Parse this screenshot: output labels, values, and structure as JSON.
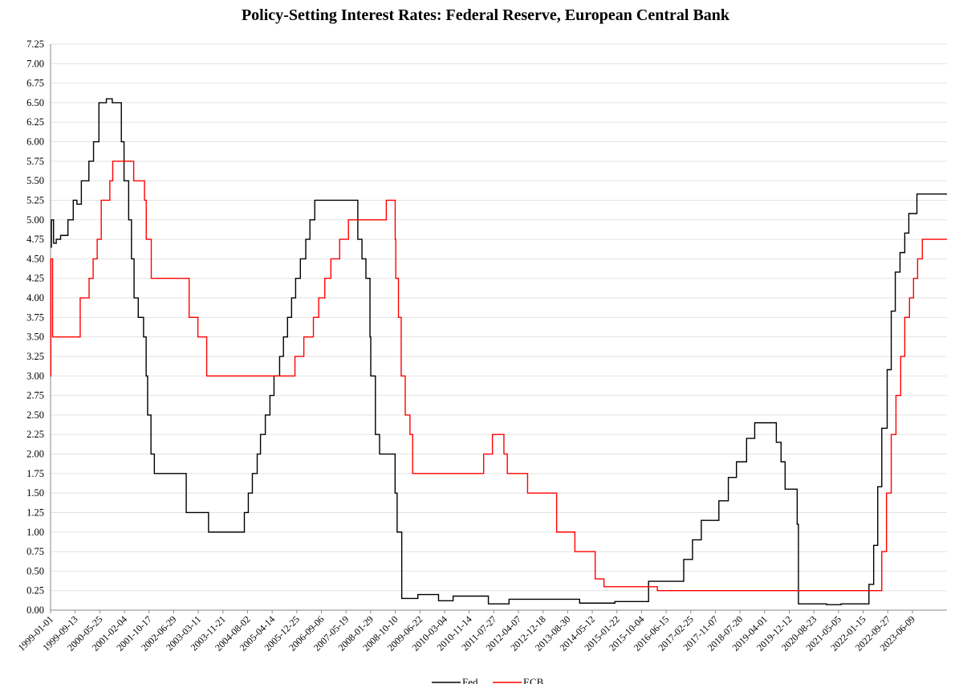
{
  "chart_data": {
    "type": "line",
    "title": "Policy-Setting Interest Rates: Federal Reserve, European Central Bank",
    "xlabel": "",
    "ylabel": "",
    "ylim": [
      0,
      7.25
    ],
    "xlim": [
      "1999-01-01",
      "2024-06-01"
    ],
    "yticks": [
      "0.00",
      "0.25",
      "0.50",
      "0.75",
      "1.00",
      "1.25",
      "1.50",
      "1.75",
      "2.00",
      "2.25",
      "2.50",
      "2.75",
      "3.00",
      "3.25",
      "3.50",
      "3.75",
      "4.00",
      "4.25",
      "4.50",
      "4.75",
      "5.00",
      "5.25",
      "5.50",
      "5.75",
      "6.00",
      "6.25",
      "6.50",
      "6.75",
      "7.00",
      "7.25"
    ],
    "xticks": [
      "1999-01-01",
      "1999-09-13",
      "2000-05-25",
      "2001-02-04",
      "2001-10-17",
      "2002-06-29",
      "2003-03-11",
      "2003-11-21",
      "2004-08-02",
      "2005-04-14",
      "2005-12-25",
      "2006-09-06",
      "2007-05-19",
      "2008-01-29",
      "2008-10-10",
      "2009-06-22",
      "2010-03-04",
      "2010-11-14",
      "2011-07-27",
      "2012-04-07",
      "2012-12-18",
      "2013-08-30",
      "2014-05-12",
      "2015-01-22",
      "2015-10-04",
      "2016-06-15",
      "2017-02-25",
      "2017-11-07",
      "2018-07-20",
      "2019-04-01",
      "2019-12-12",
      "2020-08-23",
      "2021-05-05",
      "2022-01-15",
      "2022-09-27",
      "2023-06-09"
    ],
    "grid": true,
    "legend_position": "bottom",
    "series": [
      {
        "name": "Fed",
        "color": "#000000",
        "interpolation": "step",
        "points": [
          [
            "1999-01-01",
            4.65
          ],
          [
            "1999-01-10",
            5.0
          ],
          [
            "1999-02-01",
            4.7
          ],
          [
            "1999-03-01",
            4.75
          ],
          [
            "1999-04-15",
            4.8
          ],
          [
            "1999-06-30",
            5.0
          ],
          [
            "1999-08-24",
            5.25
          ],
          [
            "1999-10-01",
            5.2
          ],
          [
            "1999-11-16",
            5.5
          ],
          [
            "2000-01-03",
            5.5
          ],
          [
            "2000-02-02",
            5.75
          ],
          [
            "2000-03-21",
            6.0
          ],
          [
            "2000-05-16",
            6.5
          ],
          [
            "2000-08-01",
            6.55
          ],
          [
            "2000-10-01",
            6.5
          ],
          [
            "2001-01-03",
            6.0
          ],
          [
            "2001-01-31",
            5.5
          ],
          [
            "2001-03-20",
            5.0
          ],
          [
            "2001-04-18",
            4.5
          ],
          [
            "2001-05-15",
            4.0
          ],
          [
            "2001-06-27",
            3.75
          ],
          [
            "2001-08-21",
            3.5
          ],
          [
            "2001-09-17",
            3.0
          ],
          [
            "2001-10-02",
            2.5
          ],
          [
            "2001-11-06",
            2.0
          ],
          [
            "2001-12-11",
            1.75
          ],
          [
            "2002-11-06",
            1.25
          ],
          [
            "2003-06-25",
            1.0
          ],
          [
            "2004-06-30",
            1.25
          ],
          [
            "2004-08-10",
            1.5
          ],
          [
            "2004-09-21",
            1.75
          ],
          [
            "2004-11-10",
            2.0
          ],
          [
            "2004-12-14",
            2.25
          ],
          [
            "2005-02-02",
            2.5
          ],
          [
            "2005-03-22",
            2.75
          ],
          [
            "2005-05-03",
            3.0
          ],
          [
            "2005-06-30",
            3.25
          ],
          [
            "2005-08-09",
            3.5
          ],
          [
            "2005-09-20",
            3.75
          ],
          [
            "2005-11-01",
            4.0
          ],
          [
            "2005-12-13",
            4.25
          ],
          [
            "2006-01-31",
            4.5
          ],
          [
            "2006-03-28",
            4.75
          ],
          [
            "2006-05-10",
            5.0
          ],
          [
            "2006-06-29",
            5.25
          ],
          [
            "2007-09-18",
            4.75
          ],
          [
            "2007-10-31",
            4.5
          ],
          [
            "2007-12-11",
            4.25
          ],
          [
            "2008-01-22",
            3.5
          ],
          [
            "2008-01-30",
            3.0
          ],
          [
            "2008-03-18",
            2.25
          ],
          [
            "2008-04-30",
            2.0
          ],
          [
            "2008-10-08",
            1.5
          ],
          [
            "2008-10-29",
            1.0
          ],
          [
            "2008-12-16",
            0.15
          ],
          [
            "2009-06-01",
            0.2
          ],
          [
            "2010-01-01",
            0.12
          ],
          [
            "2010-06-01",
            0.18
          ],
          [
            "2011-06-01",
            0.08
          ],
          [
            "2012-01-01",
            0.14
          ],
          [
            "2013-01-01",
            0.14
          ],
          [
            "2014-01-01",
            0.09
          ],
          [
            "2015-01-01",
            0.11
          ],
          [
            "2015-12-16",
            0.37
          ],
          [
            "2016-12-14",
            0.65
          ],
          [
            "2017-03-15",
            0.9
          ],
          [
            "2017-06-14",
            1.15
          ],
          [
            "2017-12-13",
            1.4
          ],
          [
            "2018-03-21",
            1.7
          ],
          [
            "2018-06-13",
            1.9
          ],
          [
            "2018-09-26",
            2.2
          ],
          [
            "2018-12-19",
            2.4
          ],
          [
            "2019-07-31",
            2.15
          ],
          [
            "2019-09-18",
            1.9
          ],
          [
            "2019-10-30",
            1.55
          ],
          [
            "2020-03-03",
            1.1
          ],
          [
            "2020-03-16",
            0.08
          ],
          [
            "2021-01-01",
            0.07
          ],
          [
            "2021-06-01",
            0.08
          ],
          [
            "2022-03-16",
            0.33
          ],
          [
            "2022-05-04",
            0.83
          ],
          [
            "2022-06-15",
            1.58
          ],
          [
            "2022-07-27",
            2.33
          ],
          [
            "2022-09-21",
            3.08
          ],
          [
            "2022-11-02",
            3.83
          ],
          [
            "2022-12-14",
            4.33
          ],
          [
            "2023-02-01",
            4.58
          ],
          [
            "2023-03-22",
            4.83
          ],
          [
            "2023-05-03",
            5.08
          ],
          [
            "2023-07-26",
            5.33
          ],
          [
            "2024-06-01",
            5.33
          ]
        ]
      },
      {
        "name": "ECB",
        "color": "#ff0000",
        "interpolation": "step",
        "points": [
          [
            "1999-01-01",
            3.0
          ],
          [
            "1999-01-04",
            4.5
          ],
          [
            "1999-01-22",
            3.5
          ],
          [
            "1999-11-04",
            4.0
          ],
          [
            "2000-02-04",
            4.25
          ],
          [
            "2000-03-17",
            4.5
          ],
          [
            "2000-04-28",
            4.75
          ],
          [
            "2000-06-09",
            5.25
          ],
          [
            "2000-09-06",
            5.5
          ],
          [
            "2000-10-06",
            5.75
          ],
          [
            "2001-05-11",
            5.5
          ],
          [
            "2001-08-31",
            5.25
          ],
          [
            "2001-09-18",
            4.75
          ],
          [
            "2001-11-09",
            4.25
          ],
          [
            "2002-12-06",
            3.75
          ],
          [
            "2003-03-07",
            3.5
          ],
          [
            "2003-06-06",
            3.0
          ],
          [
            "2005-12-06",
            3.25
          ],
          [
            "2006-03-08",
            3.5
          ],
          [
            "2006-06-15",
            3.75
          ],
          [
            "2006-08-09",
            4.0
          ],
          [
            "2006-10-11",
            4.25
          ],
          [
            "2006-12-13",
            4.5
          ],
          [
            "2007-03-14",
            4.75
          ],
          [
            "2007-06-13",
            5.0
          ],
          [
            "2008-07-09",
            5.25
          ],
          [
            "2008-10-09",
            4.75
          ],
          [
            "2008-10-15",
            4.25
          ],
          [
            "2008-11-12",
            3.75
          ],
          [
            "2008-12-10",
            3.0
          ],
          [
            "2009-01-21",
            2.5
          ],
          [
            "2009-03-11",
            2.25
          ],
          [
            "2009-04-08",
            1.75
          ],
          [
            "2011-04-13",
            2.0
          ],
          [
            "2011-07-13",
            2.25
          ],
          [
            "2011-11-09",
            2.0
          ],
          [
            "2011-12-14",
            1.75
          ],
          [
            "2012-07-11",
            1.5
          ],
          [
            "2013-05-08",
            1.0
          ],
          [
            "2013-11-13",
            0.75
          ],
          [
            "2014-06-11",
            0.4
          ],
          [
            "2014-09-10",
            0.3
          ],
          [
            "2015-12-09",
            0.3
          ],
          [
            "2016-03-16",
            0.25
          ],
          [
            "2022-07-27",
            0.75
          ],
          [
            "2022-09-14",
            1.5
          ],
          [
            "2022-11-02",
            2.25
          ],
          [
            "2022-12-21",
            2.75
          ],
          [
            "2023-02-08",
            3.25
          ],
          [
            "2023-03-22",
            3.75
          ],
          [
            "2023-05-10",
            4.0
          ],
          [
            "2023-06-21",
            4.25
          ],
          [
            "2023-08-02",
            4.5
          ],
          [
            "2023-09-20",
            4.75
          ],
          [
            "2024-06-01",
            4.75
          ]
        ]
      }
    ]
  }
}
